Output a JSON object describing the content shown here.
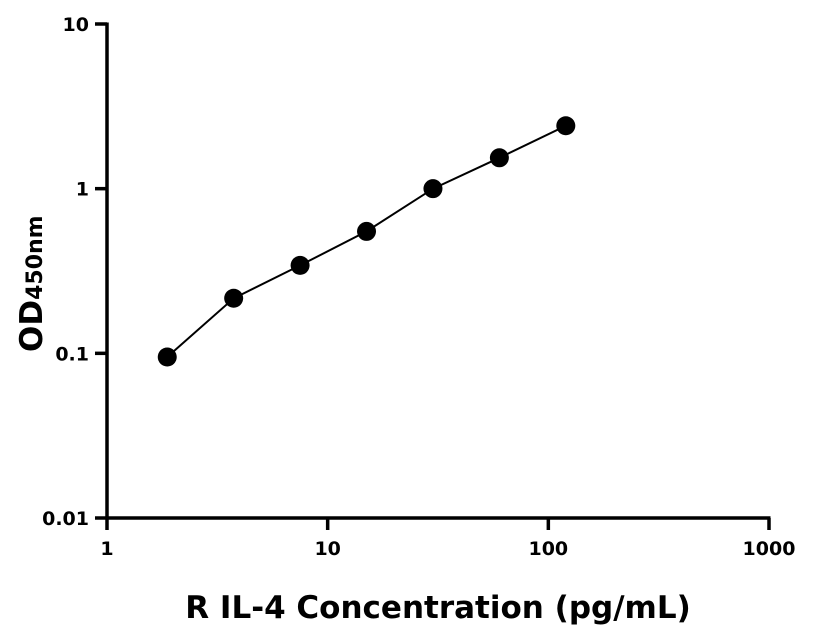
{
  "chart_data": {
    "type": "scatter",
    "title": "",
    "xlabel": "R IL-4 Concentration (pg/mL)",
    "ylabel_main": "OD",
    "ylabel_sub": "450nm",
    "x_scale": "log",
    "y_scale": "log",
    "xlim": [
      1,
      1000
    ],
    "ylim": [
      0.01,
      10
    ],
    "x_ticks": [
      1,
      10,
      100,
      1000
    ],
    "x_tick_labels": [
      "1",
      "10",
      "100",
      "1000"
    ],
    "y_ticks": [
      0.01,
      0.1,
      1,
      10
    ],
    "y_tick_labels": [
      "0.01",
      "0.1",
      "1",
      "10"
    ],
    "grid": false,
    "legend": "none",
    "series": [
      {
        "x": [
          1.875,
          3.75,
          7.5,
          15,
          30,
          60,
          120
        ],
        "y": [
          0.095,
          0.216,
          0.342,
          0.55,
          1.0,
          1.54,
          2.41
        ],
        "marker_color": "#000000",
        "fit_line": true
      }
    ]
  }
}
